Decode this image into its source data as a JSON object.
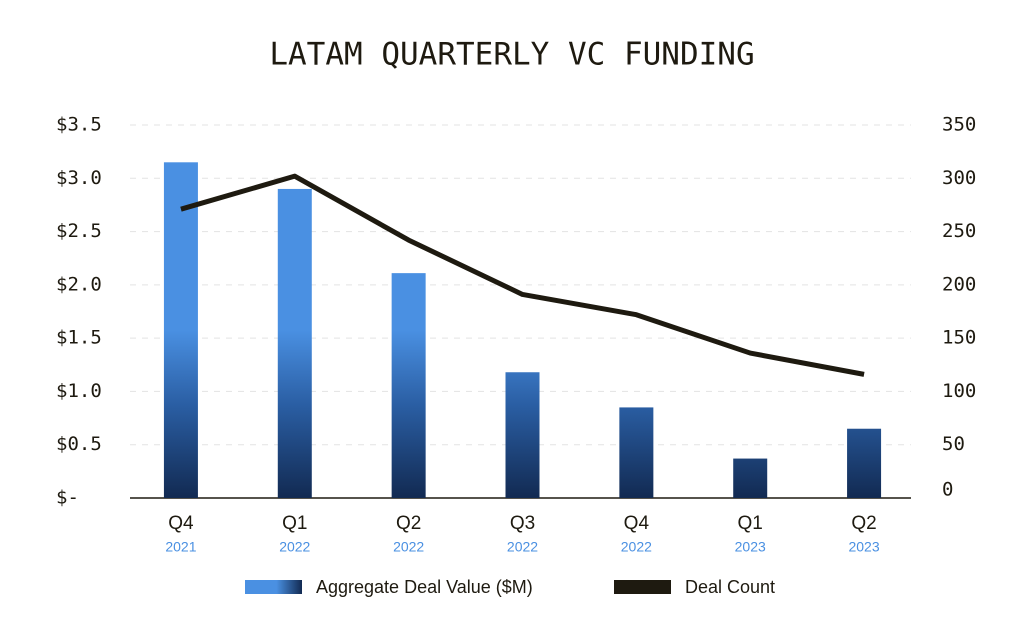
{
  "chart_data": {
    "type": "bar-line",
    "title": "LATAM QUARTERLY VC FUNDING",
    "categories": [
      [
        "Q4",
        "2021"
      ],
      [
        "Q1",
        "2022"
      ],
      [
        "Q2",
        "2022"
      ],
      [
        "Q3",
        "2022"
      ],
      [
        "Q4",
        "2022"
      ],
      [
        "Q1",
        "2023"
      ],
      [
        "Q2",
        "2023"
      ]
    ],
    "series": [
      {
        "name": "Aggregate Deal Value ($M)",
        "type": "bar",
        "color": "#4a90e2",
        "values": [
          3.15,
          2.9,
          2.11,
          1.18,
          0.85,
          0.37,
          0.65
        ]
      },
      {
        "name": "Deal Count",
        "type": "line",
        "axis": "y2",
        "color": "#1e1a10",
        "values": [
          271,
          302,
          242,
          191,
          172,
          136,
          116
        ]
      }
    ],
    "ylim": [
      0,
      3.5
    ],
    "yticks": [
      {
        "value": 0,
        "label": "$-"
      },
      {
        "value": 0.5,
        "label": "$0.5"
      },
      {
        "value": 1,
        "label": "$1.0"
      },
      {
        "value": 1.5,
        "label": "$1.5"
      },
      {
        "value": 2,
        "label": "$2.0"
      },
      {
        "value": 2.5,
        "label": "$2.5"
      },
      {
        "value": 3,
        "label": "$3.0"
      },
      {
        "value": 3.5,
        "label": "$3.5"
      }
    ],
    "y2lim": [
      0,
      350
    ],
    "y2ticks": [
      0,
      50,
      100,
      150,
      200,
      250,
      300,
      350
    ],
    "grid": true,
    "legend": "bottom"
  }
}
